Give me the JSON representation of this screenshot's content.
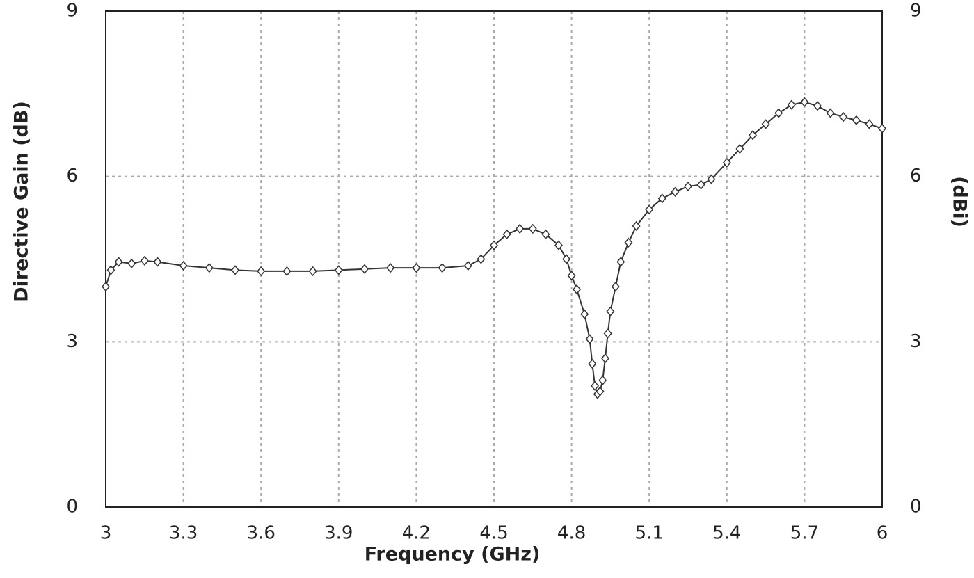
{
  "chart_data": {
    "type": "line",
    "x_label": "Frequency (GHz)",
    "y_label": "Directive Gain (dB)",
    "y2_label": "(dBi)",
    "x": [
      3.0,
      3.02,
      3.05,
      3.1,
      3.15,
      3.2,
      3.3,
      3.4,
      3.5,
      3.6,
      3.7,
      3.8,
      3.9,
      4.0,
      4.1,
      4.2,
      4.3,
      4.4,
      4.45,
      4.5,
      4.55,
      4.6,
      4.65,
      4.7,
      4.75,
      4.78,
      4.8,
      4.82,
      4.85,
      4.87,
      4.88,
      4.89,
      4.9,
      4.91,
      4.92,
      4.93,
      4.94,
      4.95,
      4.97,
      4.99,
      5.02,
      5.05,
      5.1,
      5.15,
      5.2,
      5.25,
      5.3,
      5.34,
      5.4,
      5.45,
      5.5,
      5.55,
      5.6,
      5.65,
      5.7,
      5.75,
      5.8,
      5.85,
      5.9,
      5.95,
      6.0
    ],
    "values": [
      4.0,
      4.3,
      4.45,
      4.42,
      4.47,
      4.45,
      4.38,
      4.34,
      4.3,
      4.28,
      4.28,
      4.28,
      4.3,
      4.32,
      4.34,
      4.34,
      4.34,
      4.38,
      4.5,
      4.75,
      4.95,
      5.05,
      5.05,
      4.95,
      4.75,
      4.5,
      4.2,
      3.95,
      3.5,
      3.05,
      2.6,
      2.2,
      2.05,
      2.1,
      2.3,
      2.7,
      3.15,
      3.55,
      4.0,
      4.45,
      4.8,
      5.1,
      5.4,
      5.6,
      5.72,
      5.82,
      5.85,
      5.95,
      6.25,
      6.5,
      6.75,
      6.95,
      7.15,
      7.3,
      7.35,
      7.28,
      7.15,
      7.08,
      7.02,
      6.95,
      6.87
    ],
    "color": "#333333",
    "marker": "diamond",
    "xlim": [
      3,
      6
    ],
    "xticks": [
      3,
      3.3,
      3.6,
      3.9,
      4.2,
      4.5,
      4.8,
      5.1,
      5.4,
      5.7,
      6
    ],
    "ylim": [
      0,
      9
    ],
    "yticks": [
      0,
      3,
      6,
      9
    ],
    "y2lim": [
      0,
      9
    ],
    "y2ticks": [
      0,
      3,
      6,
      9
    ],
    "grid": true
  }
}
